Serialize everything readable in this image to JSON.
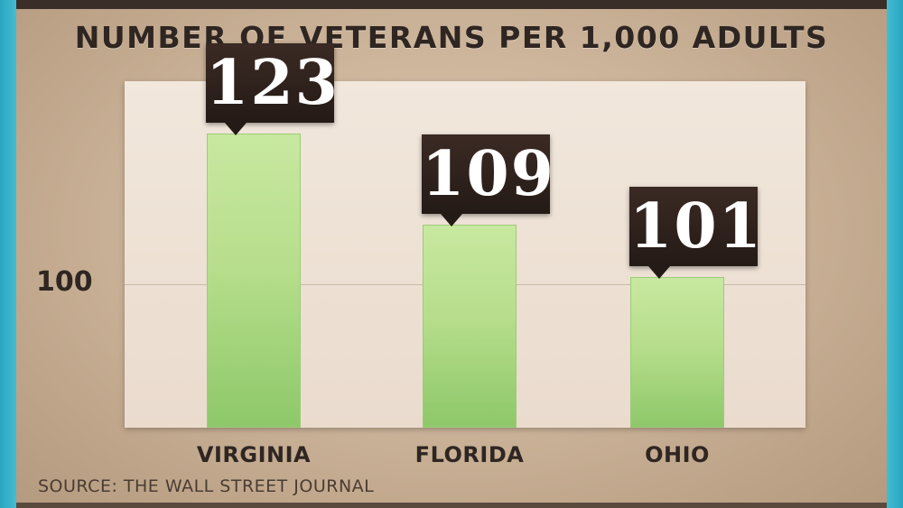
{
  "chart_data": {
    "type": "bar",
    "title": "NUMBER OF VETERANS PER 1,000 ADULTS",
    "categories": [
      "VIRGINIA",
      "FLORIDA",
      "OHIO"
    ],
    "values": [
      123,
      109,
      101
    ],
    "value_labels": [
      "123",
      "109",
      "101"
    ],
    "ytick_labels": [
      "100"
    ],
    "ytick_values": [
      100
    ],
    "ylim": [
      78,
      131
    ],
    "grid": true,
    "source": "SOURCE: THE WALL STREET JOURNAL",
    "colors": {
      "bar": "#b7de8c",
      "label_box": "#2b1f1a",
      "background": "#cdb59b",
      "plot_area": "#eee2d6",
      "frame_accent": "#3ab0c8"
    }
  }
}
